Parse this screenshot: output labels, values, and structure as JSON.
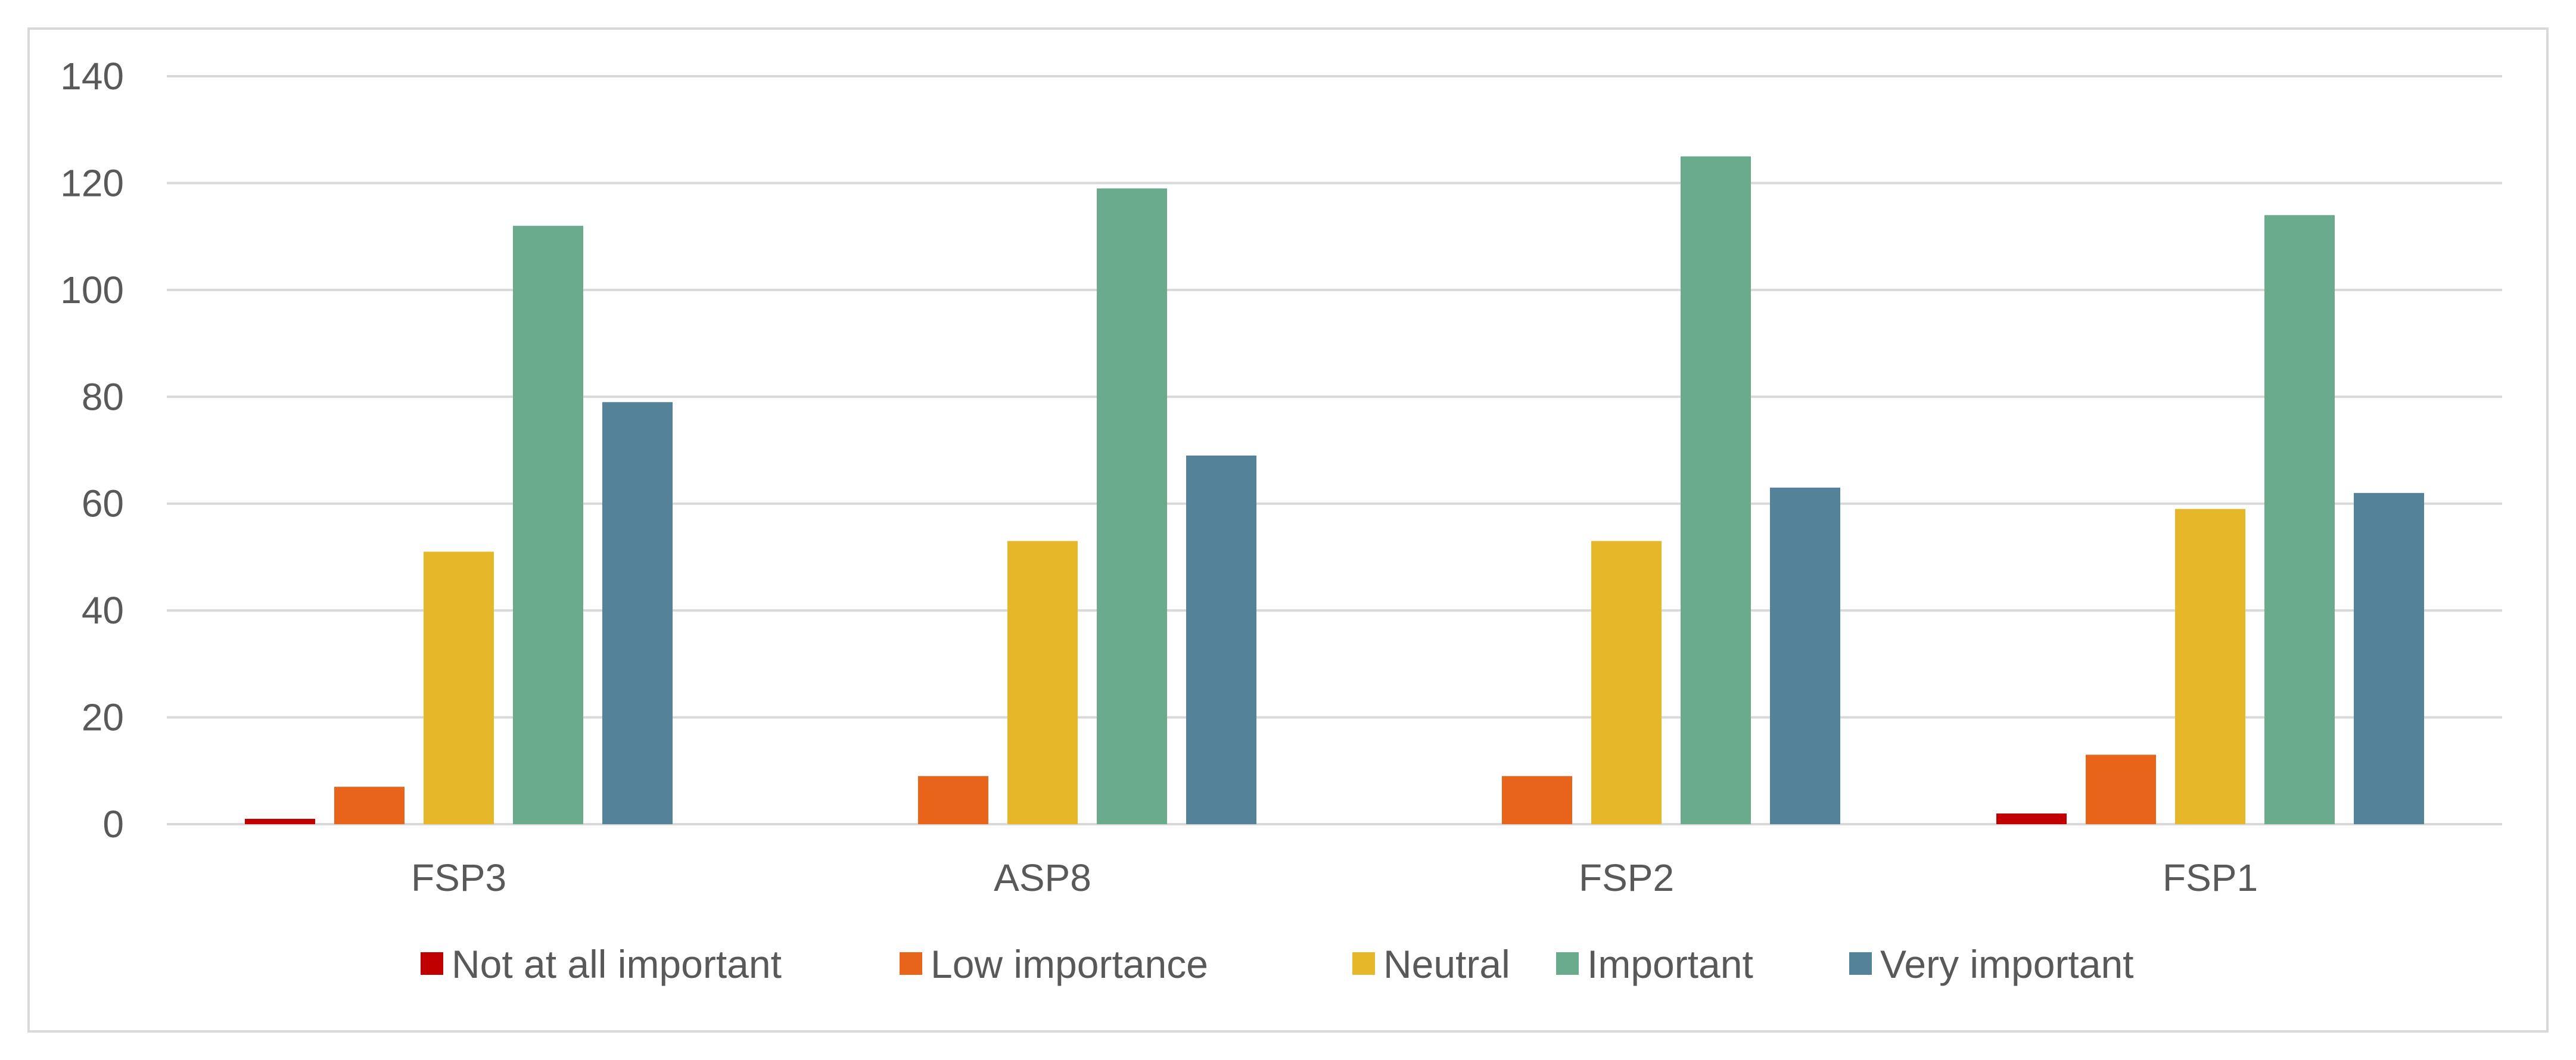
{
  "chart_data": {
    "type": "bar",
    "title": "",
    "xlabel": "",
    "ylabel": "",
    "categories": [
      "FSP3",
      "ASP8",
      "FSP2",
      "FSP1"
    ],
    "ylim": [
      0,
      140
    ],
    "yticks": [
      0,
      20,
      40,
      60,
      80,
      100,
      120,
      140
    ],
    "grid": true,
    "legend_position": "bottom",
    "series": [
      {
        "name": "Not at all important",
        "color": "#c00000",
        "values": [
          1,
          0,
          0,
          2
        ]
      },
      {
        "name": "Low importance",
        "color": "#e8641b",
        "values": [
          7,
          9,
          9,
          13
        ]
      },
      {
        "name": "Neutral",
        "color": "#e6b729",
        "values": [
          51,
          53,
          53,
          59
        ]
      },
      {
        "name": "Important",
        "color": "#6aab8e",
        "values": [
          112,
          119,
          125,
          114
        ]
      },
      {
        "name": "Very important",
        "color": "#548399",
        "values": [
          79,
          69,
          63,
          62
        ]
      }
    ]
  }
}
